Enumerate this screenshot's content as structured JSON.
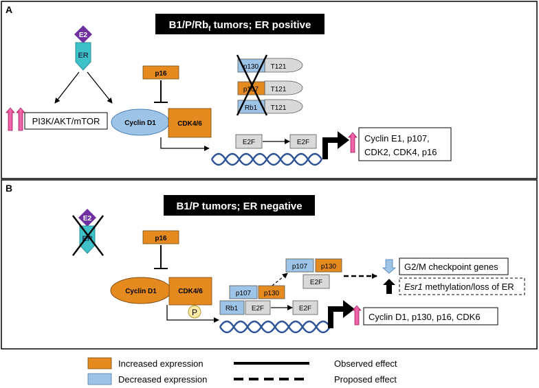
{
  "panel_a": {
    "letter": "A",
    "title_main": "B1/P/Rb",
    "title_sub": "f",
    "title_rest": " tumors; ER positive",
    "e2": "E2",
    "er": "ER",
    "pathway": "PI3K/AKT/mTOR",
    "p16": "p16",
    "cyclin_d1": "Cyclin D1",
    "cdk46": "CDK4/6",
    "pocket_p130": "p130",
    "pocket_p107": "p107",
    "pocket_rb1": "Rb1",
    "t121": "T121",
    "e2f_1": "E2F",
    "e2f_2": "E2F",
    "targets_line1": "Cyclin E1, p107,",
    "targets_line2": "CDK2, CDK4, p16"
  },
  "panel_b": {
    "letter": "B",
    "title": "B1/P tumors; ER negative",
    "e2": "E2",
    "er": "ER",
    "p16": "p16",
    "cyclin_d1": "Cyclin D1",
    "cdk46": "CDK4/6",
    "phospho": "P",
    "upper_p107": "p107",
    "upper_p130": "p130",
    "upper_e2f": "E2F",
    "mid_p107": "p107",
    "mid_p130": "p130",
    "mid_rb1": "Rb1",
    "mid_e2f": "E2F",
    "free_e2f": "E2F",
    "g2m": "G2/M checkpoint genes",
    "esr1_italic": "Esr1",
    "esr1_rest": " methylation/loss of ER",
    "targets": "Cyclin D1, p130, p16, CDK6"
  },
  "legend": {
    "increased": "Increased expression",
    "decreased": "Decreased expression",
    "observed": "Observed effect",
    "proposed": "Proposed effect"
  },
  "colors": {
    "orange": "#e58a1f",
    "blue": "#9dc3e6",
    "gray": "#d9d9d9",
    "purple": "#7030a0",
    "teal": "#3fc1c9",
    "pink": "#e8388a",
    "dna": "#2f5597"
  }
}
